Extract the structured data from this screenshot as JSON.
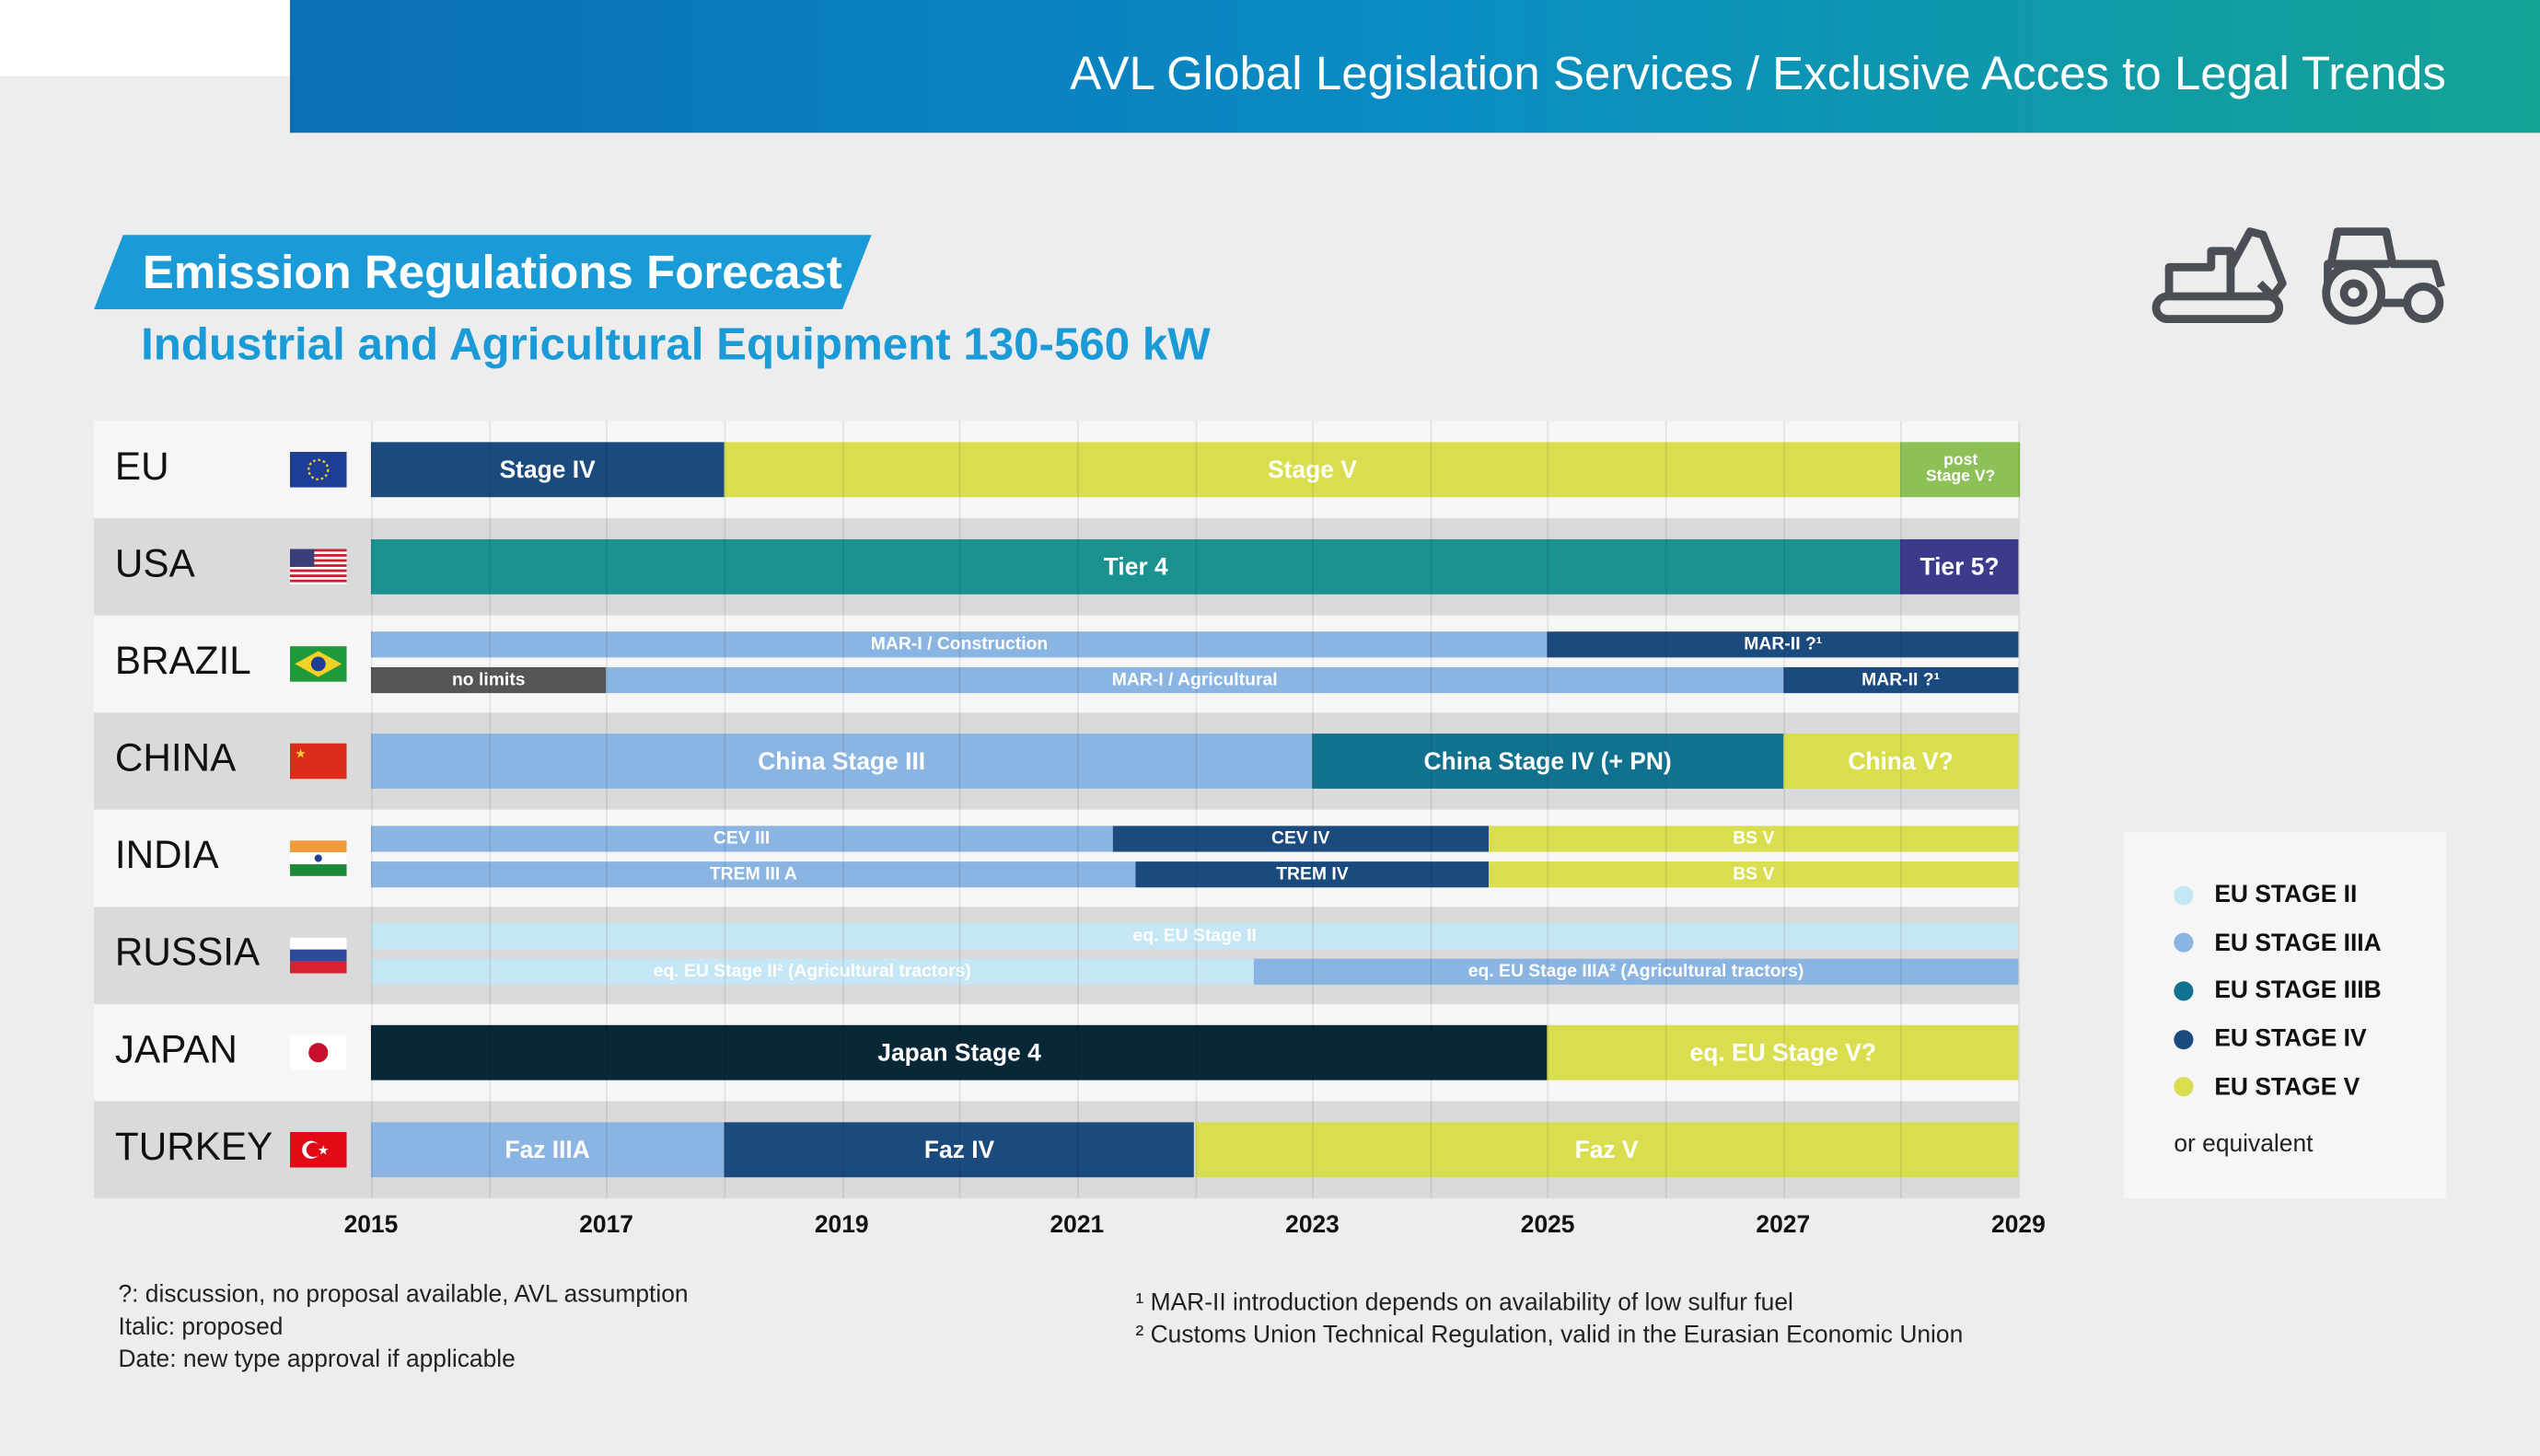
{
  "header": {
    "title": "AVL Global Legislation Services / Exclusive Acces to Legal Trends"
  },
  "page": {
    "title": "Emission Regulations Forecast",
    "subtitle": "Industrial and Agricultural Equipment 130-560 kW"
  },
  "icons": [
    "excavator-icon",
    "tractor-icon"
  ],
  "colors": {
    "eu_stage_ii": "#c5e6f4",
    "eu_stage_iiia": "#8ab4e1",
    "eu_stage_iiib": "#11728f",
    "eu_stage_iv": "#1b4a7e",
    "eu_stage_v": "#d9de4f",
    "usa_tier4": "#1a9290",
    "usa_tier5": "#3d3a8c",
    "japan": "#082838",
    "no_limits": "#555555",
    "post_stage_v": "#8dc057"
  },
  "chart_data": {
    "type": "bar",
    "orientation": "horizontal-timeline",
    "xlim": [
      2015,
      2029
    ],
    "x_ticks": [
      "2015",
      "2017",
      "2019",
      "2021",
      "2023",
      "2025",
      "2027",
      "2029"
    ],
    "grid": true,
    "rows": [
      {
        "country": "EU",
        "flag": "eu",
        "lanes": [
          [
            {
              "label": "Stage IV",
              "start": 2015,
              "end": 2018,
              "color": "#1b4a7e"
            },
            {
              "label": "Stage V",
              "start": 2018,
              "end": 2028,
              "color": "#d9de4f"
            },
            {
              "label": "post Stage V?",
              "start": 2028,
              "end": 2029,
              "color": "#8dc057"
            }
          ]
        ]
      },
      {
        "country": "USA",
        "flag": "usa",
        "lanes": [
          [
            {
              "label": "Tier 4",
              "start": 2015,
              "end": 2028,
              "color": "#1a9290"
            },
            {
              "label": "Tier 5?",
              "start": 2028,
              "end": 2029,
              "color": "#3d3a8c"
            }
          ]
        ]
      },
      {
        "country": "BRAZIL",
        "flag": "brazil",
        "lanes": [
          [
            {
              "label": "MAR-I / Construction",
              "start": 2015,
              "end": 2025,
              "color": "#8ab4e1"
            },
            {
              "label": "MAR-II ?¹",
              "start": 2025,
              "end": 2029,
              "color": "#1b4a7e"
            }
          ],
          [
            {
              "label": "no limits",
              "start": 2015,
              "end": 2017,
              "color": "#555555"
            },
            {
              "label": "MAR-I / Agricultural",
              "start": 2017,
              "end": 2027,
              "color": "#8ab4e1"
            },
            {
              "label": "MAR-II ?¹",
              "start": 2027,
              "end": 2029,
              "color": "#1b4a7e"
            }
          ]
        ]
      },
      {
        "country": "CHINA",
        "flag": "china",
        "lanes": [
          [
            {
              "label": "China Stage III",
              "start": 2015,
              "end": 2023,
              "color": "#8ab4e1"
            },
            {
              "label": "China Stage IV (+ PN)",
              "start": 2023,
              "end": 2027,
              "color": "#11728f"
            },
            {
              "label": "China V?",
              "start": 2027,
              "end": 2029,
              "color": "#d9de4f"
            }
          ]
        ]
      },
      {
        "country": "INDIA",
        "flag": "india",
        "lanes": [
          [
            {
              "label": "CEV III",
              "start": 2015,
              "end": 2021.3,
              "color": "#8ab4e1"
            },
            {
              "label": "CEV IV",
              "start": 2021.3,
              "end": 2024.5,
              "color": "#1b4a7e"
            },
            {
              "label": "BS V",
              "start": 2024.5,
              "end": 2029,
              "color": "#d9de4f"
            }
          ],
          [
            {
              "label": "TREM III A",
              "start": 2015,
              "end": 2021.5,
              "color": "#8ab4e1"
            },
            {
              "label": "TREM IV",
              "start": 2021.5,
              "end": 2024.5,
              "color": "#1b4a7e"
            },
            {
              "label": "BS V",
              "start": 2024.5,
              "end": 2029,
              "color": "#d9de4f"
            }
          ]
        ]
      },
      {
        "country": "RUSSIA",
        "flag": "russia",
        "lanes": [
          [
            {
              "label": "eq. EU Stage II",
              "start": 2015,
              "end": 2029,
              "color": "#c5e6f4"
            }
          ],
          [
            {
              "label": "eq. EU Stage II² (Agricultural tractors)",
              "start": 2015,
              "end": 2022.5,
              "color": "#c5e6f4"
            },
            {
              "label": "eq. EU Stage IIIA² (Agricultural tractors)",
              "start": 2022.5,
              "end": 2029,
              "color": "#8ab4e1"
            }
          ]
        ]
      },
      {
        "country": "JAPAN",
        "flag": "japan",
        "lanes": [
          [
            {
              "label": "Japan Stage 4",
              "start": 2015,
              "end": 2025,
              "color": "#082838"
            },
            {
              "label": "eq. EU Stage V?",
              "start": 2025,
              "end": 2029,
              "color": "#d9de4f"
            }
          ]
        ]
      },
      {
        "country": "TURKEY",
        "flag": "turkey",
        "lanes": [
          [
            {
              "label": "Faz IIIA",
              "start": 2015,
              "end": 2018,
              "color": "#8ab4e1"
            },
            {
              "label": "Faz IV",
              "start": 2018,
              "end": 2022,
              "color": "#1b4a7e"
            },
            {
              "label": "Faz V",
              "start": 2022,
              "end": 2029,
              "color": "#d9de4f"
            }
          ]
        ]
      }
    ],
    "legend": {
      "position": "right",
      "items": [
        {
          "label": "EU STAGE II",
          "color": "#c5e6f4"
        },
        {
          "label": "EU STAGE IIIA",
          "color": "#8ab4e1"
        },
        {
          "label": "EU STAGE IIIB",
          "color": "#11728f"
        },
        {
          "label": "EU STAGE IV",
          "color": "#1b4a7e"
        },
        {
          "label": "EU STAGE V",
          "color": "#d9de4f"
        }
      ],
      "note": "or equivalent"
    }
  },
  "notes": {
    "left": [
      "?: discussion, no proposal available, AVL assumption",
      "Italic: proposed",
      "Date: new type approval if applicable"
    ],
    "right": [
      "¹ MAR-II introduction depends on availability of low sulfur fuel",
      "² Customs Union Technical Regulation, valid in the Eurasian Economic Union"
    ]
  }
}
